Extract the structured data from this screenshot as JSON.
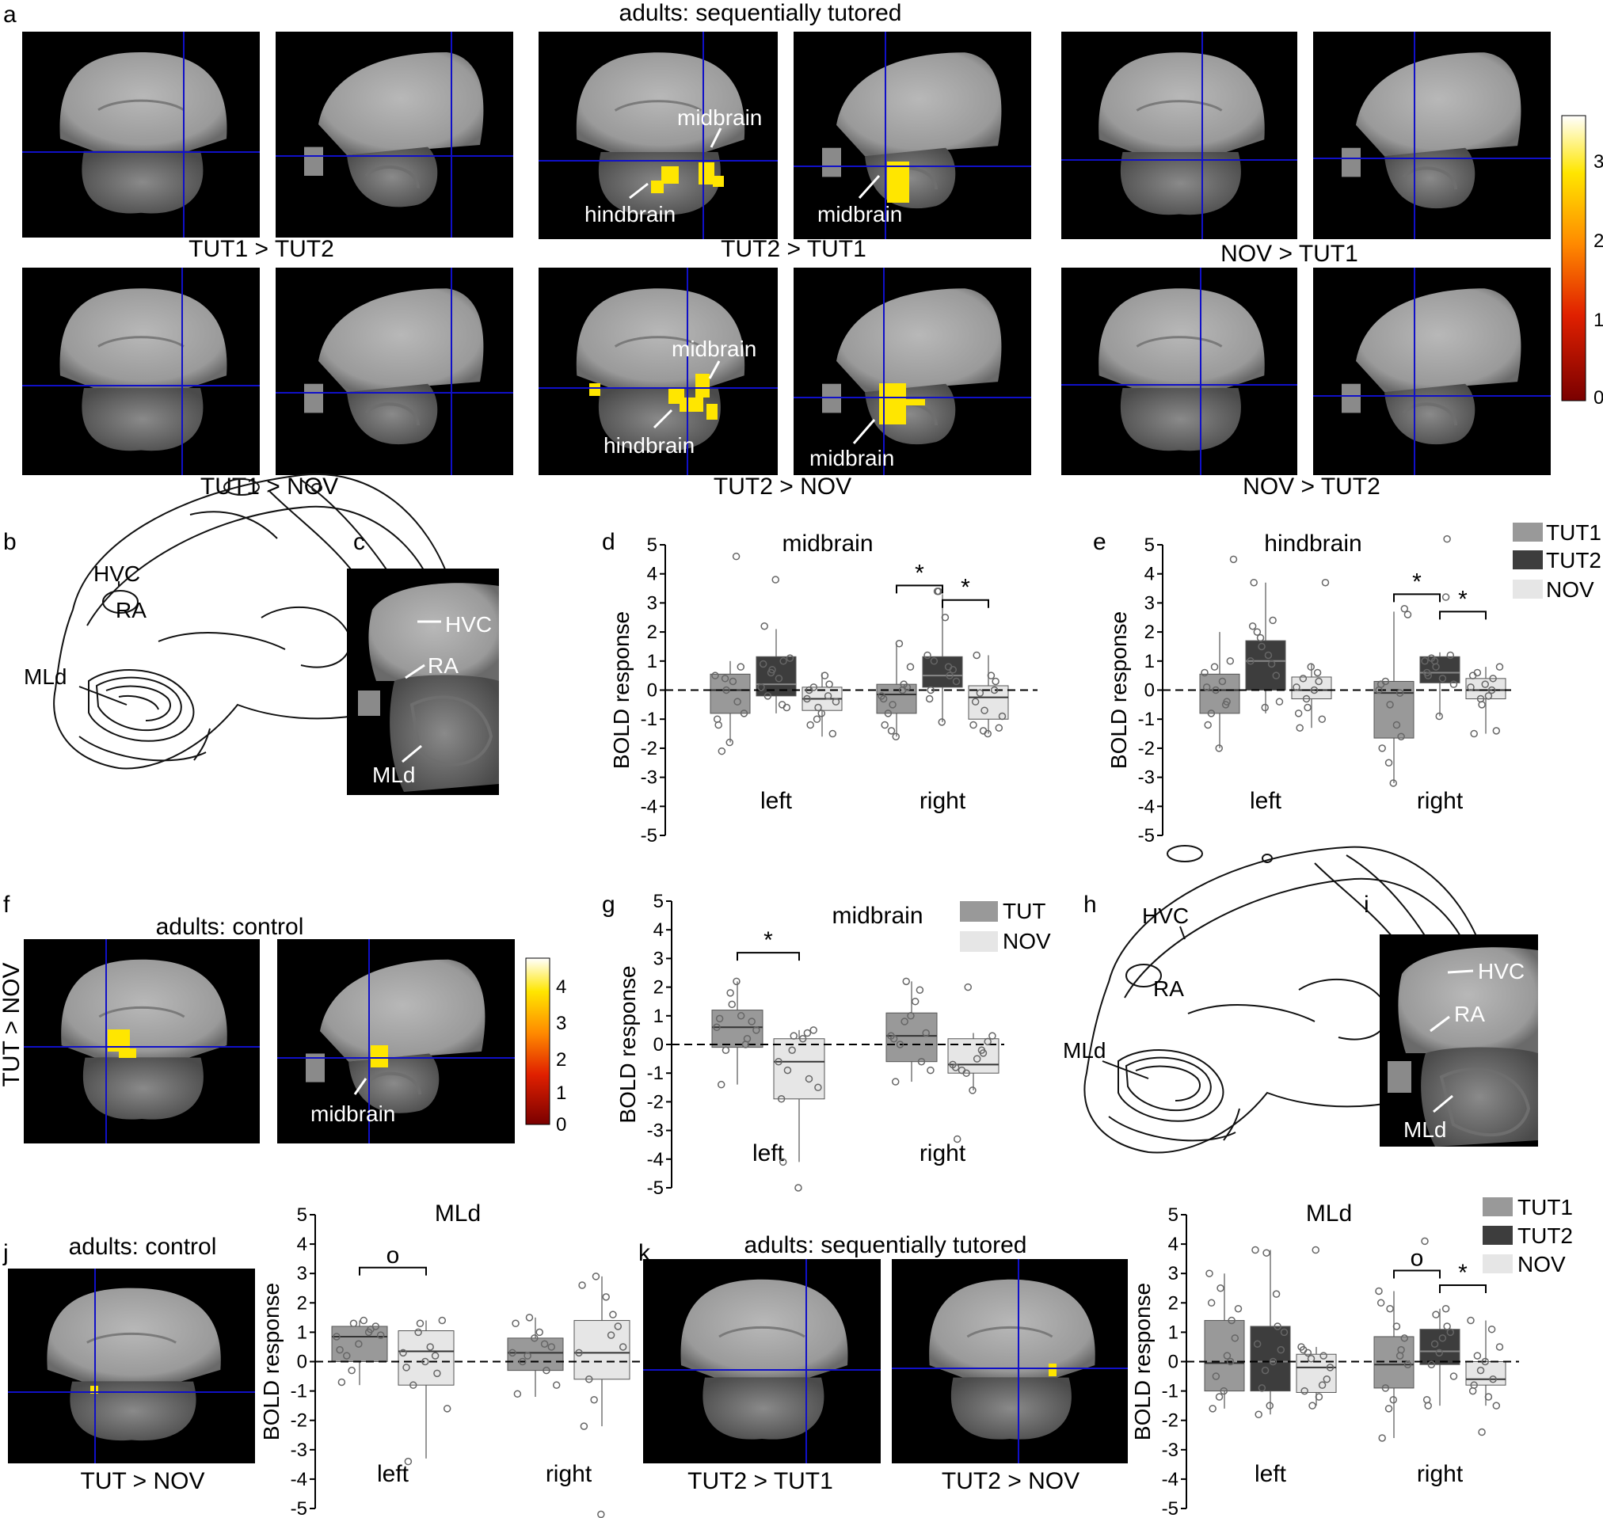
{
  "figure": {
    "panel_letters": [
      "a",
      "b",
      "c",
      "d",
      "e",
      "f",
      "g",
      "h",
      "i",
      "j",
      "k"
    ],
    "a": {
      "title": "adults: sequentially tutored",
      "captions": [
        "TUT1 > TUT2",
        "TUT2 > TUT1",
        "NOV > TUT1",
        "TUT1 > NOV",
        "TUT2 > NOV",
        "NOV > TUT2"
      ],
      "annotations": {
        "midbrain": "midbrain",
        "hindbrain": "hindbrain"
      },
      "colorbar_ticks": [
        "3",
        "2",
        "1",
        "0"
      ]
    },
    "b": {
      "labels": [
        "HVC",
        "RA",
        "MLd"
      ]
    },
    "c": {
      "labels": [
        "HVC",
        "RA",
        "MLd"
      ]
    },
    "f": {
      "title": "adults: control",
      "side_label": "TUT > NOV",
      "annotation": "midbrain",
      "colorbar_ticks": [
        "4",
        "3",
        "2",
        "1",
        "0"
      ]
    },
    "h": {
      "labels": [
        "HVC",
        "RA",
        "MLd"
      ]
    },
    "i": {
      "labels": [
        "HVC",
        "RA",
        "MLd"
      ]
    },
    "j": {
      "title": "adults: control",
      "caption": "TUT > NOV"
    },
    "k": {
      "title": "adults: sequentially tutored",
      "captions": [
        "TUT2 > TUT1",
        "TUT2 > NOV"
      ]
    },
    "legend3": [
      "TUT1",
      "TUT2",
      "NOV"
    ],
    "legend2": [
      "TUT",
      "NOV"
    ]
  },
  "colors": {
    "TUT1": "#999999",
    "TUT2": "#3d3d3d",
    "NOV": "#e6e6e6",
    "crosshair": "#1010c8",
    "activation": "#ffe600"
  },
  "chart_data": [
    {
      "id": "d",
      "type": "box",
      "title": "midbrain",
      "ylabel": "BOLD response",
      "ylim": [
        -5,
        5
      ],
      "yticks": [
        5,
        4,
        3,
        2,
        1,
        0,
        -1,
        -2,
        -3,
        -4,
        -5
      ],
      "groups": [
        "left",
        "right"
      ],
      "series": [
        "TUT1",
        "TUT2",
        "NOV"
      ],
      "boxes": [
        {
          "g": 0,
          "s": 0,
          "q1": -0.8,
          "med": 0.0,
          "q3": 0.55,
          "lo": -1.8,
          "hi": 1.0
        },
        {
          "g": 0,
          "s": 1,
          "q1": -0.2,
          "med": 0.2,
          "q3": 1.15,
          "lo": -0.8,
          "hi": 2.1
        },
        {
          "g": 0,
          "s": 2,
          "q1": -0.7,
          "med": -0.3,
          "q3": 0.1,
          "lo": -1.6,
          "hi": 0.6
        },
        {
          "g": 1,
          "s": 0,
          "q1": -0.8,
          "med": -0.15,
          "q3": 0.2,
          "lo": -1.6,
          "hi": 1.6
        },
        {
          "g": 1,
          "s": 1,
          "q1": 0.1,
          "med": 0.5,
          "q3": 1.15,
          "lo": -1.1,
          "hi": 3.3
        },
        {
          "g": 1,
          "s": 2,
          "q1": -1.0,
          "med": -0.25,
          "q3": 0.15,
          "lo": -1.5,
          "hi": 1.2
        }
      ],
      "points": [
        [
          0,
          0,
          [
            0.5,
            0.0,
            -0.4,
            -1.2,
            -1.8,
            0.8,
            -2.1,
            0.3,
            -0.8,
            0.4,
            4.6,
            -1.0
          ]
        ],
        [
          0,
          1,
          [
            0.1,
            0.7,
            1.0,
            2.2,
            3.8,
            -0.6,
            -0.2,
            0.4,
            1.1,
            0.6,
            -0.5,
            0.9
          ]
        ],
        [
          0,
          2,
          [
            -0.3,
            -0.6,
            0.2,
            -1.2,
            -0.8,
            -1.5,
            0.1,
            0.5,
            -0.4,
            -1.0,
            -0.2,
            0.0
          ]
        ],
        [
          1,
          0,
          [
            -0.2,
            -0.5,
            0.2,
            -1.2,
            -1.6,
            0.1,
            -0.8,
            1.6,
            0.8,
            -1.4,
            0.0,
            -0.3
          ]
        ],
        [
          1,
          1,
          [
            1.2,
            3.4,
            0.5,
            0.0,
            -1.1,
            0.7,
            1.0,
            2.5,
            0.3,
            3.4,
            0.8,
            -0.3
          ]
        ],
        [
          1,
          2,
          [
            -1.2,
            -0.7,
            0.3,
            1.2,
            -1.5,
            -1.3,
            -0.1,
            0.5,
            -0.9,
            -1.4,
            0.0,
            -0.4
          ]
        ]
      ],
      "significance": [
        {
          "from": [
            1,
            0
          ],
          "to": [
            1,
            1
          ],
          "label": "*",
          "y": 3.6
        },
        {
          "from": [
            1,
            1
          ],
          "to": [
            1,
            2
          ],
          "label": "*",
          "y": 3.1
        }
      ]
    },
    {
      "id": "e",
      "type": "box",
      "title": "hindbrain",
      "ylabel": "BOLD response",
      "ylim": [
        -5,
        5
      ],
      "yticks": [
        5,
        4,
        3,
        2,
        1,
        0,
        -1,
        -2,
        -3,
        -4,
        -5
      ],
      "groups": [
        "left",
        "right"
      ],
      "series": [
        "TUT1",
        "TUT2",
        "NOV"
      ],
      "boxes": [
        {
          "g": 0,
          "s": 0,
          "q1": -0.8,
          "med": 0.0,
          "q3": 0.55,
          "lo": -2.0,
          "hi": 2.0
        },
        {
          "g": 0,
          "s": 1,
          "q1": 0.0,
          "med": 1.0,
          "q3": 1.7,
          "lo": -0.8,
          "hi": 3.7
        },
        {
          "g": 0,
          "s": 2,
          "q1": -0.3,
          "med": 0.0,
          "q3": 0.45,
          "lo": -1.3,
          "hi": 0.9
        },
        {
          "g": 1,
          "s": 0,
          "q1": -1.65,
          "med": -0.1,
          "q3": 0.3,
          "lo": -3.2,
          "hi": 2.7
        },
        {
          "g": 1,
          "s": 1,
          "q1": 0.25,
          "med": 0.6,
          "q3": 1.15,
          "lo": -0.9,
          "hi": 1.3
        },
        {
          "g": 1,
          "s": 2,
          "q1": -0.3,
          "med": 0.0,
          "q3": 0.4,
          "lo": -1.5,
          "hi": 0.8
        }
      ],
      "points": [
        [
          0,
          0,
          [
            0.6,
            0.0,
            -0.4,
            -1.2,
            -2.0,
            1.0,
            -0.8,
            0.3,
            4.5,
            0.8,
            -0.5,
            0.1
          ]
        ],
        [
          0,
          1,
          [
            1.0,
            1.5,
            2.4,
            3.7,
            -0.6,
            0.5,
            2.0,
            1.2,
            -0.4,
            1.8,
            0.9,
            2.2
          ]
        ],
        [
          0,
          2,
          [
            0.1,
            -0.6,
            0.3,
            -1.3,
            0.8,
            -1.0,
            0.4,
            0.0,
            3.7,
            -0.3,
            0.6,
            -0.8
          ]
        ],
        [
          1,
          0,
          [
            0.0,
            -0.5,
            -1.6,
            -2.0,
            -3.2,
            2.8,
            0.3,
            -1.2,
            2.6,
            -2.5,
            -0.1,
            0.2
          ]
        ],
        [
          1,
          1,
          [
            1.0,
            0.8,
            5.2,
            0.5,
            -0.9,
            1.2,
            1.1,
            0.4,
            0.2,
            1.0,
            3.2,
            0.6
          ]
        ],
        [
          1,
          2,
          [
            0.1,
            -0.5,
            0.4,
            -1.5,
            0.2,
            -1.4,
            0.6,
            -0.2,
            0.8,
            -0.3,
            0.0,
            0.5
          ]
        ]
      ],
      "significance": [
        {
          "from": [
            1,
            0
          ],
          "to": [
            1,
            1
          ],
          "label": "*",
          "y": 3.3
        },
        {
          "from": [
            1,
            1
          ],
          "to": [
            1,
            2
          ],
          "label": "*",
          "y": 2.7
        }
      ]
    },
    {
      "id": "g",
      "type": "box",
      "title": "midbrain",
      "ylabel": "BOLD response",
      "ylim": [
        -5,
        5
      ],
      "yticks": [
        5,
        4,
        3,
        2,
        1,
        0,
        -1,
        -2,
        -3,
        -4,
        -5
      ],
      "groups": [
        "left",
        "right"
      ],
      "series": [
        "TUT",
        "NOV"
      ],
      "boxes": [
        {
          "g": 0,
          "s": 0,
          "q1": -0.1,
          "med": 0.6,
          "q3": 1.2,
          "lo": -1.4,
          "hi": 2.2
        },
        {
          "g": 0,
          "s": 1,
          "q1": -1.9,
          "med": -0.6,
          "q3": 0.2,
          "lo": -4.1,
          "hi": 0.5
        },
        {
          "g": 1,
          "s": 0,
          "q1": -0.6,
          "med": 0.3,
          "q3": 1.1,
          "lo": -1.3,
          "hi": 2.2
        },
        {
          "g": 1,
          "s": 1,
          "q1": -1.0,
          "med": -0.7,
          "q3": 0.2,
          "lo": -1.6,
          "hi": 0.4
        }
      ],
      "points": [
        [
          0,
          0,
          [
            0.6,
            1.4,
            0.2,
            -1.4,
            2.2,
            0.8,
            -0.2,
            1.0,
            0.5,
            1.8,
            0.0,
            0.9
          ]
        ],
        [
          0,
          1,
          [
            -0.6,
            0.3,
            -1.2,
            -4.1,
            -5.0,
            0.5,
            -0.9,
            0.2,
            -1.5,
            -0.2,
            0.4,
            -1.9
          ]
        ],
        [
          1,
          0,
          [
            0.3,
            2.2,
            -0.6,
            -1.3,
            1.0,
            0.4,
            0.0,
            1.5,
            -0.9,
            0.8,
            1.9,
            0.2
          ]
        ],
        [
          1,
          1,
          [
            -0.7,
            2.0,
            -0.3,
            -3.3,
            -1.6,
            0.1,
            -0.9,
            -0.5,
            0.3,
            -1.0,
            -0.2,
            -0.8
          ]
        ]
      ],
      "significance": [
        {
          "from": [
            0,
            0
          ],
          "to": [
            0,
            1
          ],
          "label": "*",
          "y": 3.2
        }
      ]
    },
    {
      "id": "j",
      "type": "box",
      "title": "MLd",
      "ylabel": "BOLD response",
      "ylim": [
        -5,
        5
      ],
      "yticks": [
        5,
        4,
        3,
        2,
        1,
        0,
        -1,
        -2,
        -3,
        -4,
        -5
      ],
      "groups": [
        "left",
        "right"
      ],
      "series": [
        "TUT",
        "NOV"
      ],
      "boxes": [
        {
          "g": 0,
          "s": 0,
          "q1": 0.0,
          "med": 0.85,
          "q3": 1.2,
          "lo": -0.8,
          "hi": 1.4
        },
        {
          "g": 0,
          "s": 1,
          "q1": -0.8,
          "med": 0.35,
          "q3": 1.05,
          "lo": -3.3,
          "hi": 1.4
        },
        {
          "g": 1,
          "s": 0,
          "q1": -0.3,
          "med": 0.3,
          "q3": 0.8,
          "lo": -1.2,
          "hi": 1.5
        },
        {
          "g": 1,
          "s": 1,
          "q1": -0.6,
          "med": 0.3,
          "q3": 1.4,
          "lo": -2.2,
          "hi": 2.9
        }
      ],
      "points": [
        [
          0,
          0,
          [
            0.85,
            1.3,
            1.1,
            -0.7,
            0.6,
            1.2,
            0.2,
            1.4,
            0.9,
            -0.3,
            1.0,
            0.4
          ]
        ],
        [
          0,
          1,
          [
            0.3,
            1.3,
            -0.4,
            -3.4,
            0.0,
            1.4,
            -0.8,
            0.5,
            -1.6,
            1.0,
            0.2,
            -0.2
          ]
        ],
        [
          1,
          0,
          [
            0.3,
            1.5,
            -0.3,
            -1.1,
            0.8,
            0.5,
            0.0,
            1.0,
            -0.8,
            0.2,
            0.6,
            1.3
          ]
        ],
        [
          1,
          1,
          [
            0.3,
            2.9,
            1.6,
            -2.2,
            -5.2,
            1.2,
            -0.6,
            2.2,
            0.5,
            -1.3,
            0.9,
            2.6
          ]
        ]
      ],
      "significance": [
        {
          "from": [
            0,
            0
          ],
          "to": [
            0,
            1
          ],
          "label": "o",
          "y": 3.2
        }
      ]
    },
    {
      "id": "k",
      "type": "box",
      "title": "MLd",
      "ylabel": "BOLD response",
      "ylim": [
        -5,
        5
      ],
      "yticks": [
        5,
        4,
        3,
        2,
        1,
        0,
        -1,
        -2,
        -3,
        -4,
        -5
      ],
      "groups": [
        "left",
        "right"
      ],
      "series": [
        "TUT1",
        "TUT2",
        "NOV"
      ],
      "boxes": [
        {
          "g": 0,
          "s": 0,
          "q1": -1.0,
          "med": -0.05,
          "q3": 1.4,
          "lo": -1.6,
          "hi": 3.0
        },
        {
          "g": 0,
          "s": 1,
          "q1": -1.0,
          "med": 0.0,
          "q3": 1.2,
          "lo": -1.8,
          "hi": 3.8
        },
        {
          "g": 0,
          "s": 2,
          "q1": -1.05,
          "med": -0.2,
          "q3": 0.25,
          "lo": -1.5,
          "hi": 0.5
        },
        {
          "g": 1,
          "s": 0,
          "q1": -0.9,
          "med": -0.1,
          "q3": 0.85,
          "lo": -2.6,
          "hi": 2.4
        },
        {
          "g": 1,
          "s": 1,
          "q1": -0.1,
          "med": 0.35,
          "q3": 1.1,
          "lo": -1.5,
          "hi": 1.8
        },
        {
          "g": 1,
          "s": 2,
          "q1": -0.8,
          "med": -0.6,
          "q3": 0.0,
          "lo": -1.5,
          "hi": 1.4
        }
      ],
      "points": [
        [
          0,
          0,
          [
            3.0,
            2.5,
            1.4,
            -1.6,
            -1.0,
            0.8,
            -0.5,
            0.2,
            1.8,
            -1.2,
            0.0,
            2.0
          ]
        ],
        [
          0,
          1,
          [
            3.8,
            3.7,
            1.2,
            -1.8,
            -1.5,
            0.4,
            -0.9,
            0.0,
            1.0,
            -0.3,
            2.3,
            0.6
          ]
        ],
        [
          0,
          2,
          [
            0.5,
            -1.5,
            0.2,
            -1.0,
            3.8,
            -0.6,
            0.3,
            -1.2,
            -0.2,
            0.1,
            -0.8,
            0.4
          ]
        ],
        [
          1,
          0,
          [
            2.4,
            1.8,
            0.4,
            -2.6,
            -1.3,
            0.8,
            -0.9,
            1.2,
            -0.1,
            -1.6,
            0.2,
            2.0
          ]
        ],
        [
          1,
          1,
          [
            4.1,
            1.6,
            1.2,
            -1.5,
            0.3,
            1.0,
            -0.1,
            0.8,
            -0.5,
            0.6,
            1.8,
            -1.3
          ]
        ],
        [
          1,
          2,
          [
            1.4,
            -2.4,
            -0.6,
            -0.8,
            0.0,
            -1.5,
            0.2,
            -1.2,
            0.5,
            -0.3,
            1.1,
            -1.0
          ]
        ]
      ],
      "significance": [
        {
          "from": [
            1,
            0
          ],
          "to": [
            1,
            1
          ],
          "label": "o",
          "y": 3.1
        },
        {
          "from": [
            1,
            1
          ],
          "to": [
            1,
            2
          ],
          "label": "*",
          "y": 2.6
        }
      ]
    }
  ]
}
